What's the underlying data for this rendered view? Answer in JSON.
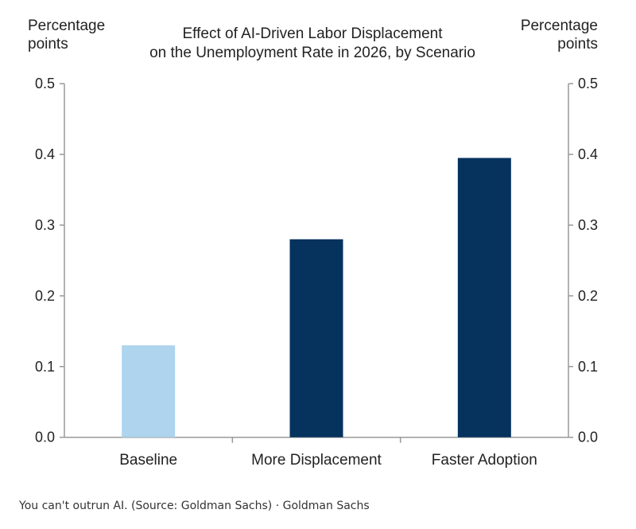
{
  "chart_data": {
    "type": "bar",
    "title": "Effect of AI-Driven  Labor Displacement\non the Unemployment Rate in 2026, by Scenario",
    "title_lines": [
      "Effect of AI-Driven  Labor Displacement",
      "on the Unemployment Rate in 2026, by Scenario"
    ],
    "ylabel_left_lines": [
      "Percentage",
      "points"
    ],
    "ylabel_right_lines": [
      "Percentage",
      "points"
    ],
    "categories": [
      "Baseline",
      "More Displacement",
      "Faster Adoption"
    ],
    "values": [
      0.13,
      0.28,
      0.395
    ],
    "colors": [
      "#aed4ee",
      "#06325e",
      "#06325e"
    ],
    "ylim": [
      0,
      0.5
    ],
    "yticks": [
      "0.0",
      "0.1",
      "0.2",
      "0.3",
      "0.4",
      "0.5"
    ],
    "grid": false,
    "dual_axis": true
  },
  "caption": {
    "text": "You can't outrun AI. (Source: Goldman Sachs)  ·  Goldman Sachs"
  }
}
